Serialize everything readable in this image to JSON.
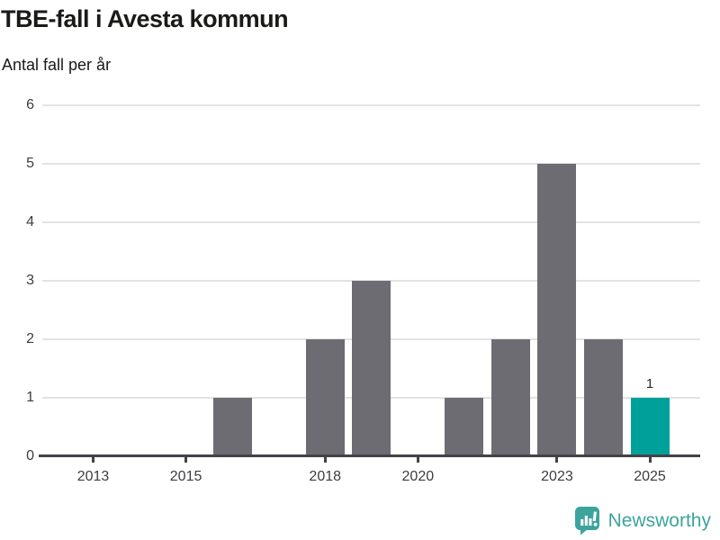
{
  "title": "TBE-fall i Avesta kommun",
  "subtitle": "Antal fall per år",
  "chart_data": {
    "type": "bar",
    "title": "TBE-fall i Avesta kommun",
    "subtitle": "Antal fall per år",
    "ylabel": "Antal fall per år",
    "xlabel": "",
    "categories": [
      2013,
      2014,
      2015,
      2016,
      2017,
      2018,
      2019,
      2020,
      2021,
      2022,
      2023,
      2024,
      2025
    ],
    "values": [
      0,
      0,
      0,
      1,
      0,
      2,
      3,
      0,
      1,
      2,
      5,
      2,
      1
    ],
    "ylim": [
      0,
      6
    ],
    "yticks": [
      0,
      1,
      2,
      3,
      4,
      5,
      6
    ],
    "xticks_labeled": [
      2013,
      2015,
      2018,
      2020,
      2023,
      2025
    ],
    "grid": true,
    "legend": "none",
    "highlight": {
      "category": 2025,
      "value": 1,
      "label": "1"
    },
    "colors": {
      "bar": "#6d6c72",
      "highlight": "#00a09a",
      "axis": "#434249",
      "gridline": "#e3e3e3",
      "tick_text": "#3d3d42",
      "title_text": "#1a1a18",
      "value_label_text": "#2b2b2b"
    }
  },
  "footer": {
    "brand": "Newsworthy",
    "logo_icon": "newsworthy-speech-bubble-barchart-icon",
    "brand_color": "#3da49d"
  }
}
